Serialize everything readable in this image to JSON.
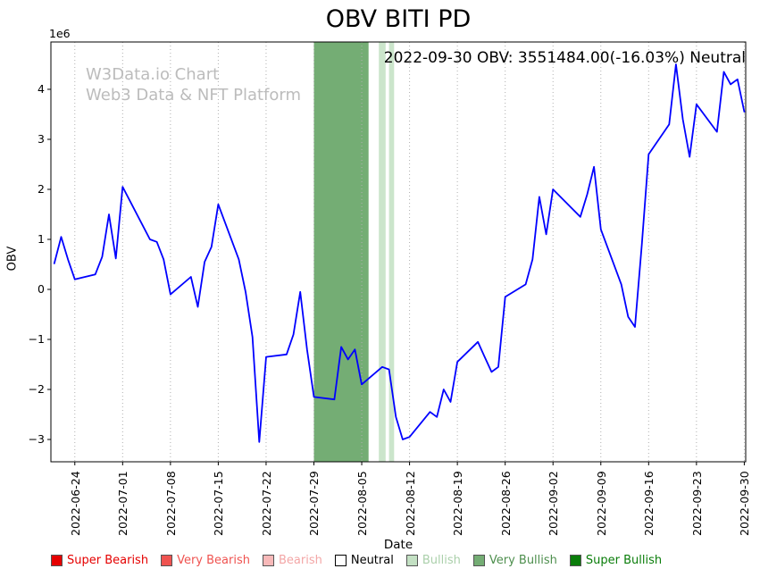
{
  "title": "OBV BITI PD",
  "subtitle": "2022-09-30 OBV: 3551484.00(-16.03%) Neutral",
  "watermark": {
    "line1": "W3Data.io Chart",
    "line2": "Web3 Data & NFT Platform"
  },
  "latest": {
    "date": "2022-09-30",
    "obv": 3551484.0,
    "change_pct": -16.03,
    "signal": "Neutral"
  },
  "axes": {
    "x_label": "Date",
    "y_label": "OBV",
    "y_offset_text": "1e6",
    "x_ticks": [
      "2022-06-24",
      "2022-07-01",
      "2022-07-08",
      "2022-07-15",
      "2022-07-22",
      "2022-07-29",
      "2022-08-05",
      "2022-08-12",
      "2022-08-19",
      "2022-08-26",
      "2022-09-02",
      "2022-09-09",
      "2022-09-16",
      "2022-09-23",
      "2022-09-30"
    ],
    "y_ticks": [
      {
        "value": 4,
        "label": "4"
      },
      {
        "value": 3,
        "label": "3"
      },
      {
        "value": 2,
        "label": "2"
      },
      {
        "value": 1,
        "label": "1"
      },
      {
        "value": 0,
        "label": "0"
      },
      {
        "value": -1,
        "label": "−1"
      },
      {
        "value": -2,
        "label": "−2"
      },
      {
        "value": -3,
        "label": "−3"
      }
    ]
  },
  "legend": [
    {
      "label": "Super Bearish",
      "color": "#e50000",
      "text_color": "#e50000"
    },
    {
      "label": "Very Bearish",
      "color": "#ef5350",
      "text_color": "#ef5350"
    },
    {
      "label": "Bearish",
      "color": "#f8b9b9",
      "text_color": "#f3a6a6"
    },
    {
      "label": "Neutral",
      "color": "#ffffff",
      "text_color": "#000000"
    },
    {
      "label": "Bullish",
      "color": "#c3e0c3",
      "text_color": "#abd0ab"
    },
    {
      "label": "Very Bullish",
      "color": "#74ad74",
      "text_color": "#4e8f4e"
    },
    {
      "label": "Super Bullish",
      "color": "#0a7d0a",
      "text_color": "#0a7d0a"
    }
  ],
  "chart_data": {
    "type": "line",
    "title": "OBV BITI PD",
    "xlabel": "Date",
    "ylabel": "OBV",
    "y_unit": "1e6",
    "ylim": [
      -3.446,
      4.946
    ],
    "xlim": [
      "2022-06-20T12:00:00Z",
      "2022-09-30T05:00:00Z"
    ],
    "grid": "vertical-dotted",
    "line_color": "#0000ff",
    "series": [
      {
        "name": "OBV",
        "color": "#0000ff",
        "dates": [
          "2022-06-21",
          "2022-06-22",
          "2022-06-23",
          "2022-06-24",
          "2022-06-27",
          "2022-06-28",
          "2022-06-29",
          "2022-06-30",
          "2022-07-01",
          "2022-07-05",
          "2022-07-06",
          "2022-07-07",
          "2022-07-08",
          "2022-07-11",
          "2022-07-12",
          "2022-07-13",
          "2022-07-14",
          "2022-07-15",
          "2022-07-18",
          "2022-07-19",
          "2022-07-20",
          "2022-07-21",
          "2022-07-22",
          "2022-07-25",
          "2022-07-26",
          "2022-07-27",
          "2022-07-28",
          "2022-07-29",
          "2022-08-01",
          "2022-08-02",
          "2022-08-03",
          "2022-08-04",
          "2022-08-05",
          "2022-08-08",
          "2022-08-09",
          "2022-08-10",
          "2022-08-11",
          "2022-08-12",
          "2022-08-15",
          "2022-08-16",
          "2022-08-17",
          "2022-08-18",
          "2022-08-19",
          "2022-08-22",
          "2022-08-23",
          "2022-08-24",
          "2022-08-25",
          "2022-08-26",
          "2022-08-29",
          "2022-08-30",
          "2022-08-31",
          "2022-09-01",
          "2022-09-02",
          "2022-09-06",
          "2022-09-07",
          "2022-09-08",
          "2022-09-09",
          "2022-09-12",
          "2022-09-13",
          "2022-09-14",
          "2022-09-15",
          "2022-09-16",
          "2022-09-19",
          "2022-09-20",
          "2022-09-21",
          "2022-09-22",
          "2022-09-23",
          "2022-09-26",
          "2022-09-27",
          "2022-09-28",
          "2022-09-29",
          "2022-09-30"
        ],
        "values": [
          0.52,
          1.05,
          0.6,
          0.2,
          0.3,
          0.65,
          1.5,
          0.62,
          2.05,
          1.0,
          0.95,
          0.6,
          -0.1,
          0.25,
          -0.35,
          0.55,
          0.85,
          1.7,
          0.6,
          -0.05,
          -0.95,
          -3.05,
          -1.35,
          -1.3,
          -0.9,
          -0.05,
          -1.2,
          -2.15,
          -2.2,
          -1.15,
          -1.4,
          -1.2,
          -1.9,
          -1.55,
          -1.6,
          -2.55,
          -3.0,
          -2.95,
          -2.45,
          -2.55,
          -2.0,
          -2.25,
          -1.45,
          -1.05,
          -1.35,
          -1.65,
          -1.55,
          -0.15,
          0.1,
          0.6,
          1.85,
          1.1,
          2.0,
          1.45,
          1.9,
          2.45,
          1.2,
          0.1,
          -0.55,
          -0.75,
          0.9,
          2.7,
          3.3,
          4.5,
          3.4,
          2.65,
          3.7,
          3.15,
          4.35,
          4.1,
          4.2,
          3.551484
        ]
      }
    ],
    "bands": [
      {
        "label": "Very Bullish",
        "start": "2022-07-29",
        "end": "2022-08-06",
        "color": "#74ad74"
      },
      {
        "label": "Bullish",
        "start": "2022-08-07T12:00:00Z",
        "end": "2022-08-08T12:00:00Z",
        "color": "#cbe5cb"
      },
      {
        "label": "Bullish",
        "start": "2022-08-09T00:00:00Z",
        "end": "2022-08-09T18:00:00Z",
        "color": "#cbe5cb"
      }
    ]
  }
}
